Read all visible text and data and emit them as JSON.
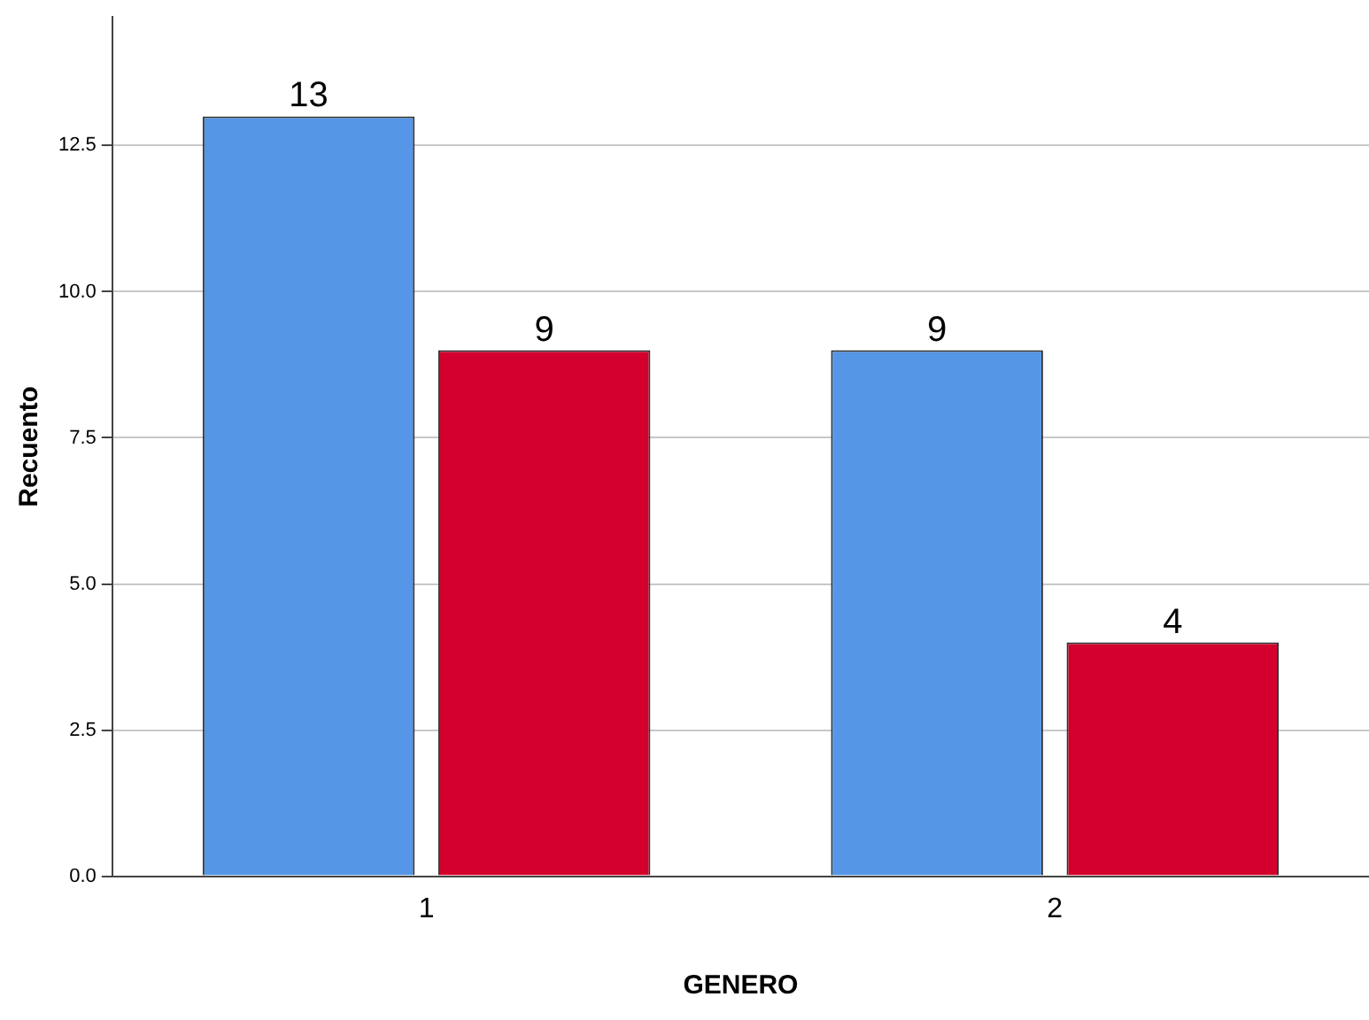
{
  "chart_data": {
    "type": "bar",
    "xlabel": "GENERO",
    "ylabel": "Recuento",
    "categories": [
      "1",
      "2"
    ],
    "series": [
      {
        "color": "#5596e6",
        "values": [
          13,
          9
        ]
      },
      {
        "color": "#d3002d",
        "values": [
          9,
          4
        ]
      }
    ],
    "ylim": [
      0,
      14.7
    ],
    "yticks": [
      {
        "value": 0,
        "label": "0.0"
      },
      {
        "value": 2.5,
        "label": "2.5"
      },
      {
        "value": 5,
        "label": "5.0"
      },
      {
        "value": 7.5,
        "label": "7.5"
      },
      {
        "value": 10,
        "label": "10.0"
      },
      {
        "value": 12.5,
        "label": "12.5"
      }
    ],
    "grid": "y",
    "data_labels": true,
    "legend": false
  }
}
